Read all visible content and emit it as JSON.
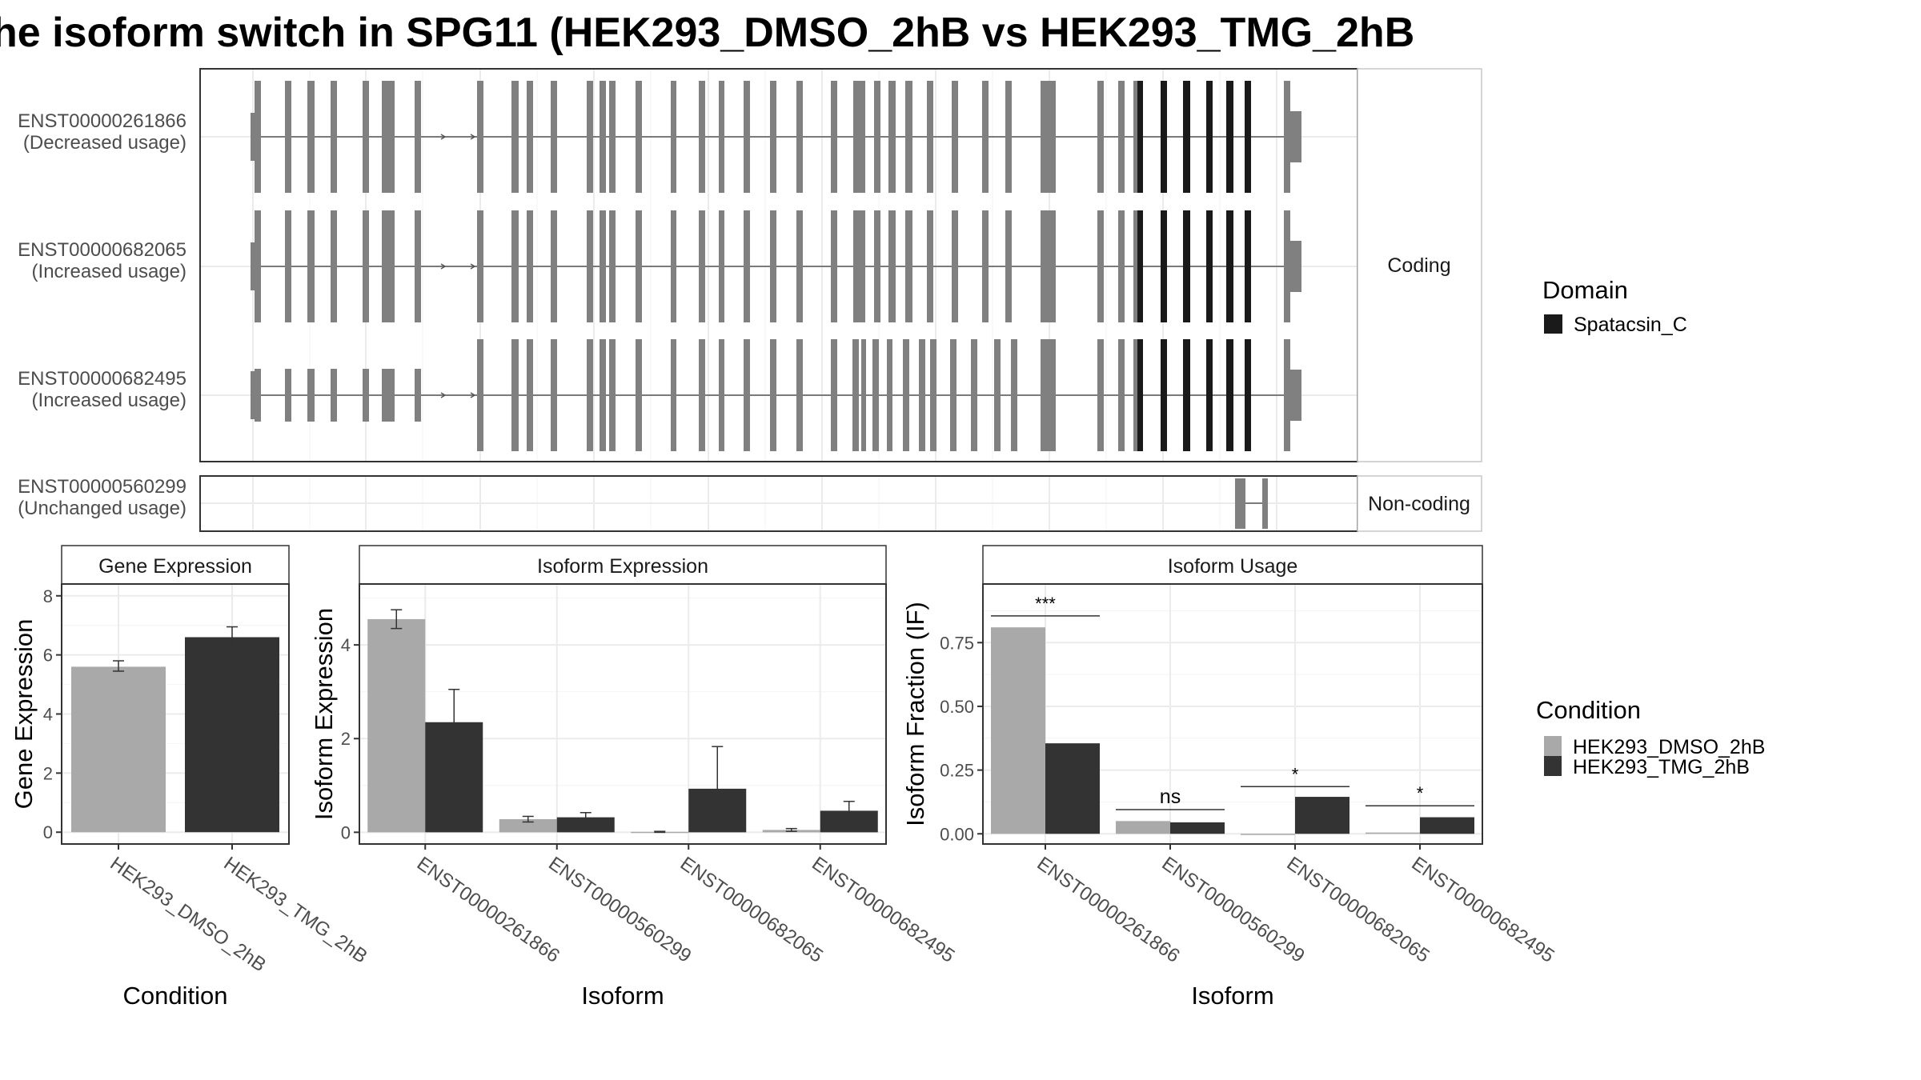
{
  "title": "he isoform switch in SPG11 (HEK293_DMSO_2hB vs HEK293_TMG_2hB",
  "colors": {
    "exon": "#808080",
    "domain": "#1a1a1a",
    "bar_dmso": "#a9a9a9",
    "bar_tmg": "#333333",
    "grid": "#ebebeb",
    "panel_border": "#333333",
    "strip_bg": "#ffffff",
    "text": "#4d4d4d"
  },
  "structure": {
    "facets": [
      {
        "label": "Coding",
        "rows": [
          "ENST00000261866",
          "ENST00000682065",
          "ENST00000682495"
        ]
      },
      {
        "label": "Non-coding",
        "rows": [
          "ENST00000560299"
        ]
      }
    ],
    "transcripts": [
      {
        "id": "ENST00000261866",
        "usage": "(Decreased usage)",
        "facet": 0,
        "row": 0
      },
      {
        "id": "ENST00000682065",
        "usage": "(Increased usage)",
        "facet": 0,
        "row": 1
      },
      {
        "id": "ENST00000682495",
        "usage": "(Increased usage)",
        "facet": 0,
        "row": 2
      },
      {
        "id": "ENST00000560299",
        "usage": "(Unchanged usage)",
        "facet": 1,
        "row": 0
      }
    ],
    "domain_legend": {
      "title": "Domain",
      "items": [
        {
          "label": "Spatacsin_C",
          "color": "#1a1a1a"
        }
      ]
    }
  },
  "chart_data": [
    {
      "type": "bar",
      "title": "Gene Expression",
      "xlabel": "Condition",
      "ylabel": "Gene Expression",
      "categories": [
        "HEK293_DMSO_2hB",
        "HEK293_TMG_2hB"
      ],
      "ylim": [
        -0.4,
        8.4
      ],
      "yticks": [
        0,
        2,
        4,
        6,
        8
      ],
      "yticklabels": [
        "0",
        "2",
        "4",
        "6",
        "8"
      ],
      "series": [
        {
          "values": [
            5.6,
            6.6
          ],
          "err_low": [
            5.45,
            6.25
          ],
          "err_high": [
            5.8,
            6.95
          ]
        }
      ]
    },
    {
      "type": "bar",
      "title": "Isoform Expression",
      "xlabel": "Isoform",
      "ylabel": "Isoform Expression",
      "categories": [
        "ENST00000261866",
        "ENST00000560299",
        "ENST00000682065",
        "ENST00000682495"
      ],
      "ylim": [
        -0.25,
        5.3
      ],
      "yticks": [
        0,
        2,
        4
      ],
      "yticklabels": [
        "0",
        "2",
        "4"
      ],
      "series": [
        {
          "name": "HEK293_DMSO_2hB",
          "values": [
            4.55,
            0.28,
            0.01,
            0.05
          ],
          "err_low": [
            4.35,
            0.22,
            0.0,
            0.02
          ],
          "err_high": [
            4.75,
            0.34,
            0.02,
            0.08
          ]
        },
        {
          "name": "HEK293_TMG_2hB",
          "values": [
            2.35,
            0.32,
            0.93,
            0.46
          ],
          "err_low": [
            1.65,
            0.22,
            0.02,
            0.28
          ],
          "err_high": [
            3.05,
            0.42,
            1.83,
            0.66
          ]
        }
      ]
    },
    {
      "type": "bar",
      "title": "Isoform Usage",
      "xlabel": "Isoform",
      "ylabel": "Isoform Fraction (IF)",
      "categories": [
        "ENST00000261866",
        "ENST00000560299",
        "ENST00000682065",
        "ENST00000682495"
      ],
      "ylim": [
        -0.04,
        0.98
      ],
      "yticks": [
        0,
        0.25,
        0.5,
        0.75
      ],
      "yticklabels": [
        "0.00",
        "0.25",
        "0.50",
        "0.75"
      ],
      "series": [
        {
          "name": "HEK293_DMSO_2hB",
          "values": [
            0.81,
            0.05,
            0.0,
            0.005
          ]
        },
        {
          "name": "HEK293_TMG_2hB",
          "values": [
            0.355,
            0.045,
            0.145,
            0.065
          ]
        }
      ],
      "significance": [
        {
          "label": "***",
          "y": 0.855
        },
        {
          "label": "ns",
          "y": 0.095
        },
        {
          "label": "*",
          "y": 0.185
        },
        {
          "label": "*",
          "y": 0.11
        }
      ]
    }
  ],
  "condition_legend": {
    "title": "Condition",
    "items": [
      {
        "label": "HEK293_DMSO_2hB",
        "color": "#a9a9a9"
      },
      {
        "label": "HEK293_TMG_2hB",
        "color": "#333333"
      }
    ]
  }
}
